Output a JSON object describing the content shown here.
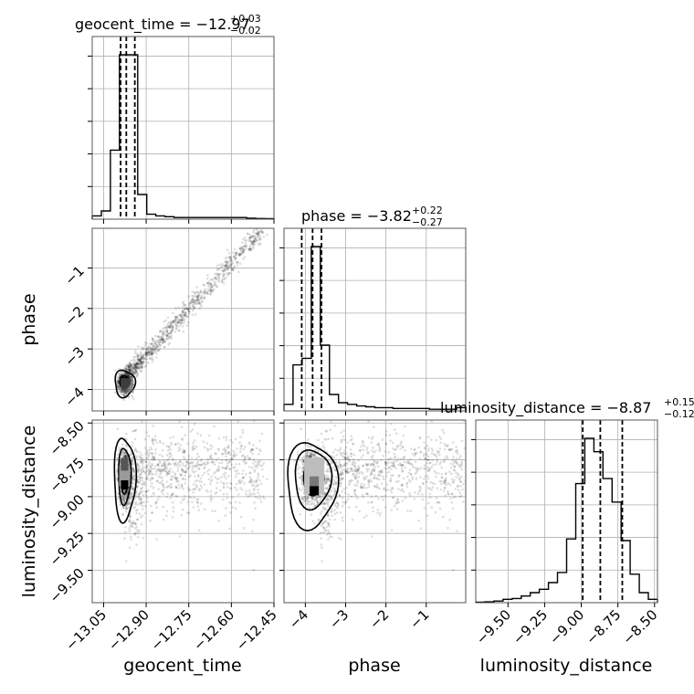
{
  "chart_data": {
    "type": "corner",
    "params": [
      "geocent_time",
      "phase",
      "luminosity_distance"
    ],
    "axis_labels": {
      "x": [
        "geocent_time",
        "phase",
        "luminosity_distance"
      ],
      "y": [
        "phase",
        "luminosity_distance"
      ]
    },
    "titles": [
      {
        "param": "geocent_time",
        "prefix": "geocent_time = ",
        "median": "−12.97",
        "plus": "+0.03",
        "minus": "−0.02"
      },
      {
        "param": "phase",
        "prefix": "phase = ",
        "median": "−3.82",
        "plus": "+0.22",
        "minus": "−0.27"
      },
      {
        "param": "luminosity_distance",
        "prefix": "luminosity_distance = ",
        "median": "−8.87",
        "plus": "+0.15",
        "minus": "−0.12"
      }
    ],
    "ranges": {
      "geocent_time": [
        -13.09,
        -12.45
      ],
      "phase": [
        -4.53,
        -0.02
      ],
      "luminosity_distance": [
        -9.72,
        -8.48
      ]
    },
    "ticks": {
      "geocent_time": {
        "values": [
          -13.05,
          -12.9,
          -12.75,
          -12.6,
          -12.45
        ],
        "labels": [
          "−13.05",
          "−12.90",
          "−12.75",
          "−12.60",
          "−12.45"
        ]
      },
      "phase": {
        "values": [
          -4,
          -3,
          -2,
          -1
        ],
        "labels": [
          "−4",
          "−3",
          "−2",
          "−1"
        ]
      },
      "luminosity_distance": {
        "values": [
          -9.5,
          -9.25,
          -9.0,
          -8.75,
          -8.5
        ],
        "labels": [
          "−9.50",
          "−9.25",
          "−9.00",
          "−8.75",
          "−8.50"
        ]
      }
    },
    "histograms": {
      "geocent_time": {
        "heights": [
          2,
          5,
          42,
          100,
          100,
          15,
          3,
          2,
          1.5,
          1,
          1,
          1,
          1,
          1,
          1,
          1,
          1,
          0.6,
          0.4,
          0.3
        ]
      },
      "phase": {
        "heights": [
          4,
          28,
          32,
          100,
          40,
          10,
          5,
          4,
          3,
          2.5,
          2,
          2,
          1.5,
          1.5,
          1.5,
          1.5,
          1,
          1,
          1,
          2
        ]
      },
      "luminosity_distance": {
        "heights": [
          0.3,
          0.5,
          1,
          2,
          2.5,
          4,
          6,
          8,
          12,
          18,
          38,
          71,
          98,
          90,
          74,
          60,
          37,
          17,
          6,
          2
        ]
      }
    },
    "quantile_lines": {
      "geocent_time": [
        -12.99,
        -12.97,
        -12.94
      ],
      "phase": [
        -4.09,
        -3.82,
        -3.6
      ],
      "luminosity_distance": [
        -8.99,
        -8.87,
        -8.72
      ]
    },
    "y_ticks_1d_hidden": true,
    "grid": true
  }
}
